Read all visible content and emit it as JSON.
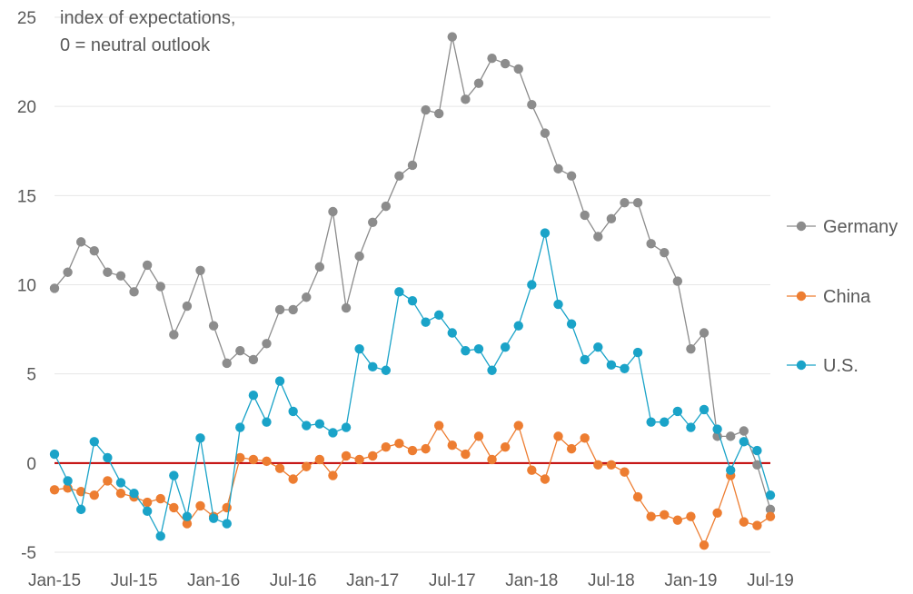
{
  "chart_data": {
    "type": "line",
    "ylabel_line1": "index of expectations,",
    "ylabel_line2": "0 = neutral outlook",
    "ylim": [
      -5,
      25
    ],
    "yticks": [
      -5,
      0,
      5,
      10,
      15,
      20,
      25
    ],
    "xtick_labels": [
      "Jan-15",
      "Jul-15",
      "Jan-16",
      "Jul-16",
      "Jan-17",
      "Jul-17",
      "Jan-18",
      "Jul-18",
      "Jan-19",
      "Jul-19"
    ],
    "x_start": "Jan-15",
    "x_end": "Jul-19",
    "grid": "horizontal",
    "legend_position": "right",
    "reference_line": {
      "value": 0,
      "color": "#c00000"
    },
    "series": [
      {
        "name": "Germany",
        "color": "#8c8c8c",
        "values": [
          9.8,
          10.7,
          12.4,
          11.9,
          10.7,
          10.5,
          9.6,
          11.1,
          9.9,
          7.2,
          8.8,
          10.8,
          7.7,
          5.6,
          6.3,
          5.8,
          6.7,
          8.6,
          8.6,
          9.3,
          11.0,
          14.1,
          8.7,
          11.6,
          13.5,
          14.4,
          16.1,
          16.7,
          19.8,
          19.6,
          23.9,
          20.4,
          21.3,
          22.7,
          22.4,
          22.1,
          20.1,
          18.5,
          16.5,
          16.1,
          13.9,
          12.7,
          13.7,
          14.6,
          14.6,
          12.3,
          11.8,
          10.2,
          6.4,
          7.3,
          1.5,
          1.5,
          1.8,
          -0.1,
          -2.6
        ]
      },
      {
        "name": "China",
        "color": "#ed7d31",
        "values": [
          -1.5,
          -1.4,
          -1.6,
          -1.8,
          -1.0,
          -1.7,
          -1.9,
          -2.2,
          -2.0,
          -2.5,
          -3.4,
          -2.4,
          -3.0,
          -2.5,
          0.3,
          0.2,
          0.1,
          -0.3,
          -0.9,
          -0.2,
          0.2,
          -0.7,
          0.4,
          0.2,
          0.4,
          0.9,
          1.1,
          0.7,
          0.8,
          2.1,
          1.0,
          0.5,
          1.5,
          0.2,
          0.9,
          2.1,
          -0.4,
          -0.9,
          1.5,
          0.8,
          1.4,
          -0.1,
          -0.1,
          -0.5,
          -1.9,
          -3.0,
          -2.9,
          -3.2,
          -3.0,
          -4.6,
          -2.8,
          -0.7,
          -3.3,
          -3.5,
          -3.0
        ]
      },
      {
        "name": "U.S.",
        "color": "#1aa3c8",
        "values": [
          0.5,
          -1.0,
          -2.6,
          1.2,
          0.3,
          -1.1,
          -1.7,
          -2.7,
          -4.1,
          -0.7,
          -3.0,
          1.4,
          -3.1,
          -3.4,
          2.0,
          3.8,
          2.3,
          4.6,
          2.9,
          2.1,
          2.2,
          1.7,
          2.0,
          6.4,
          5.4,
          5.2,
          9.6,
          9.1,
          7.9,
          8.3,
          7.3,
          6.3,
          6.4,
          5.2,
          6.5,
          7.7,
          10.0,
          12.9,
          8.9,
          7.8,
          5.8,
          6.5,
          5.5,
          5.3,
          6.2,
          2.3,
          2.3,
          2.9,
          2.0,
          3.0,
          1.9,
          -0.4,
          1.2,
          0.7,
          -1.8
        ]
      }
    ]
  }
}
